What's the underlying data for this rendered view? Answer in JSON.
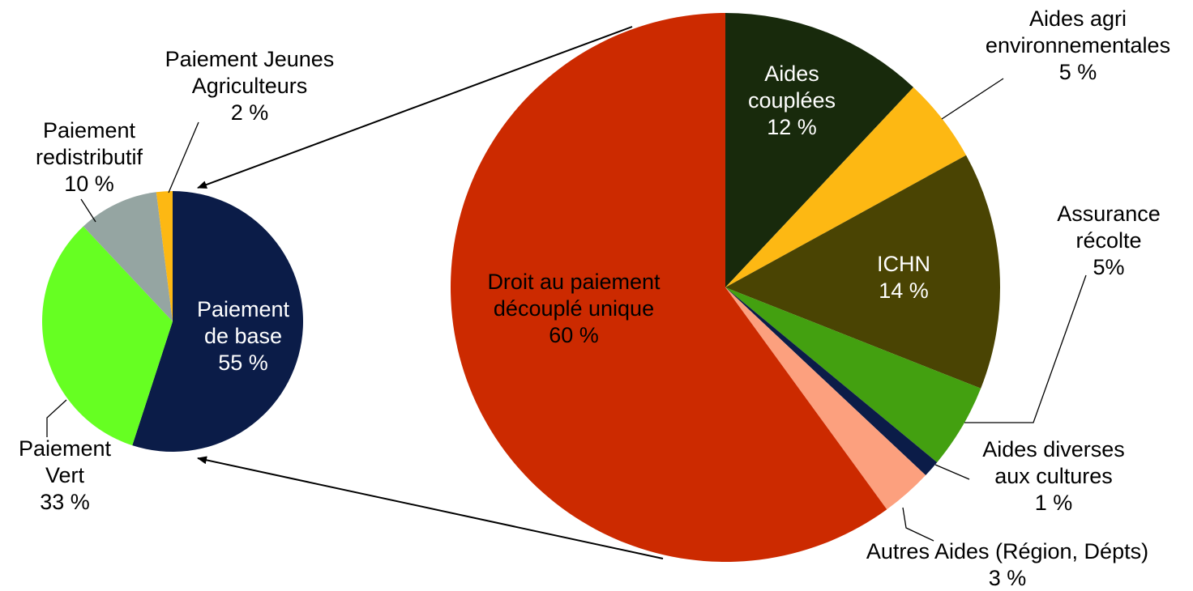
{
  "chart_data": [
    {
      "type": "pie",
      "slices": [
        {
          "label_lines": [
            "Paiement",
            "de base"
          ],
          "value": 55,
          "value_label": "55 %",
          "color": "#0b1c48",
          "label_color": "#ffffff"
        },
        {
          "label_lines": [
            "Paiement",
            "Vert"
          ],
          "value": 33,
          "value_label": "33 %",
          "color": "#66ff22",
          "label_color": "#000000"
        },
        {
          "label_lines": [
            "Paiement",
            "redistributif"
          ],
          "value": 10,
          "value_label": "10 %",
          "color": "#95a5a2",
          "label_color": "#000000"
        },
        {
          "label_lines": [
            "Paiement Jeunes",
            "Agriculteurs"
          ],
          "value": 2,
          "value_label": "2 %",
          "color": "#fdb813",
          "label_color": "#000000"
        }
      ]
    },
    {
      "type": "pie",
      "slices": [
        {
          "label_lines": [
            "Aides",
            "couplées"
          ],
          "value": 12,
          "value_label": "12 %",
          "color": "#182a0c",
          "label_color": "#ffffff"
        },
        {
          "label_lines": [
            "Aides agri",
            "environnementales"
          ],
          "value": 5,
          "value_label": "5 %",
          "color": "#fdb813",
          "label_color": "#000000"
        },
        {
          "label_lines": [
            "ICHN"
          ],
          "value": 14,
          "value_label": "14 %",
          "color": "#4a4403",
          "label_color": "#ffffff"
        },
        {
          "label_lines": [
            "Assurance",
            "récolte"
          ],
          "value": 5,
          "value_label": "5%",
          "color": "#43a010",
          "label_color": "#000000"
        },
        {
          "label_lines": [
            "Aides diverses",
            "aux cultures"
          ],
          "value": 1,
          "value_label": "1 %",
          "color": "#0b1c48",
          "label_color": "#000000"
        },
        {
          "label_lines": [
            "Autres Aides (Région, Dépts)"
          ],
          "value": 3,
          "value_label": "3 %",
          "color": "#fca07e",
          "label_color": "#000000"
        },
        {
          "label_lines": [
            "Droit au paiement",
            "découplé unique"
          ],
          "value": 60,
          "value_label": "60 %",
          "color": "#cc2a00",
          "label_color": "#000000"
        }
      ]
    }
  ]
}
